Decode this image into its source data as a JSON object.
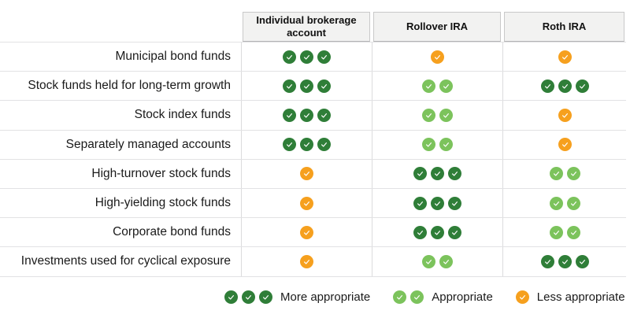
{
  "palette": {
    "more_appropriate_green": "#2F7E38",
    "appropriate_light_green": "#7CC35C",
    "less_appropriate_orange": "#F6A01E",
    "check_mark": "#FFFFFF",
    "header_fill": "#F2F2F1",
    "grid_line": "#E2E2E4"
  },
  "ratings": {
    "more": {
      "label": "More appropriate",
      "check_count": 3,
      "color": "#2F7E38",
      "icon": "check-circle-icon"
    },
    "appropriate": {
      "label": "Appropriate",
      "check_count": 2,
      "color": "#7CC35C",
      "icon": "check-circle-icon"
    },
    "less": {
      "label": "Less appropriate",
      "check_count": 1,
      "color": "#F6A01E",
      "icon": "check-circle-icon"
    }
  },
  "table": {
    "columns": [
      {
        "label": "Individual brokerage account"
      },
      {
        "label": "Rollover IRA"
      },
      {
        "label": "Roth IRA"
      }
    ],
    "rows": [
      {
        "label": "Municipal bond funds",
        "cells": [
          "more",
          "less",
          "less"
        ]
      },
      {
        "label": "Stock funds held for long-term growth",
        "cells": [
          "more",
          "appropriate",
          "more"
        ]
      },
      {
        "label": "Stock index funds",
        "cells": [
          "more",
          "appropriate",
          "less"
        ]
      },
      {
        "label": "Separately managed accounts",
        "cells": [
          "more",
          "appropriate",
          "less"
        ]
      },
      {
        "label": "High-turnover stock funds",
        "cells": [
          "less",
          "more",
          "appropriate"
        ]
      },
      {
        "label": "High-yielding stock funds",
        "cells": [
          "less",
          "more",
          "appropriate"
        ]
      },
      {
        "label": "Corporate bond funds",
        "cells": [
          "less",
          "more",
          "appropriate"
        ]
      },
      {
        "label": "Investments used for cyclical exposure",
        "cells": [
          "less",
          "appropriate",
          "more"
        ]
      }
    ]
  },
  "legend_order": [
    "more",
    "appropriate",
    "less"
  ],
  "chart_data": {
    "type": "table",
    "title": "",
    "columns": [
      "Individual brokerage account",
      "Rollover IRA",
      "Roth IRA"
    ],
    "categories": [
      "Municipal bond funds",
      "Stock funds held for long-term growth",
      "Stock index funds",
      "Separately managed accounts",
      "High-turnover stock funds",
      "High-yielding stock funds",
      "Corporate bond funds",
      "Investments used for cyclical exposure"
    ],
    "values": [
      [
        "more",
        "less",
        "less"
      ],
      [
        "more",
        "appropriate",
        "more"
      ],
      [
        "more",
        "appropriate",
        "less"
      ],
      [
        "more",
        "appropriate",
        "less"
      ],
      [
        "less",
        "more",
        "appropriate"
      ],
      [
        "less",
        "more",
        "appropriate"
      ],
      [
        "less",
        "more",
        "appropriate"
      ],
      [
        "less",
        "appropriate",
        "more"
      ]
    ],
    "legend": [
      {
        "key": "more",
        "label": "More appropriate",
        "marks": 3,
        "color": "#2F7E38"
      },
      {
        "key": "appropriate",
        "label": "Appropriate",
        "marks": 2,
        "color": "#7CC35C"
      },
      {
        "key": "less",
        "label": "Less appropriate",
        "marks": 1,
        "color": "#F6A01E"
      }
    ],
    "legend_position": "bottom",
    "grid": true
  }
}
